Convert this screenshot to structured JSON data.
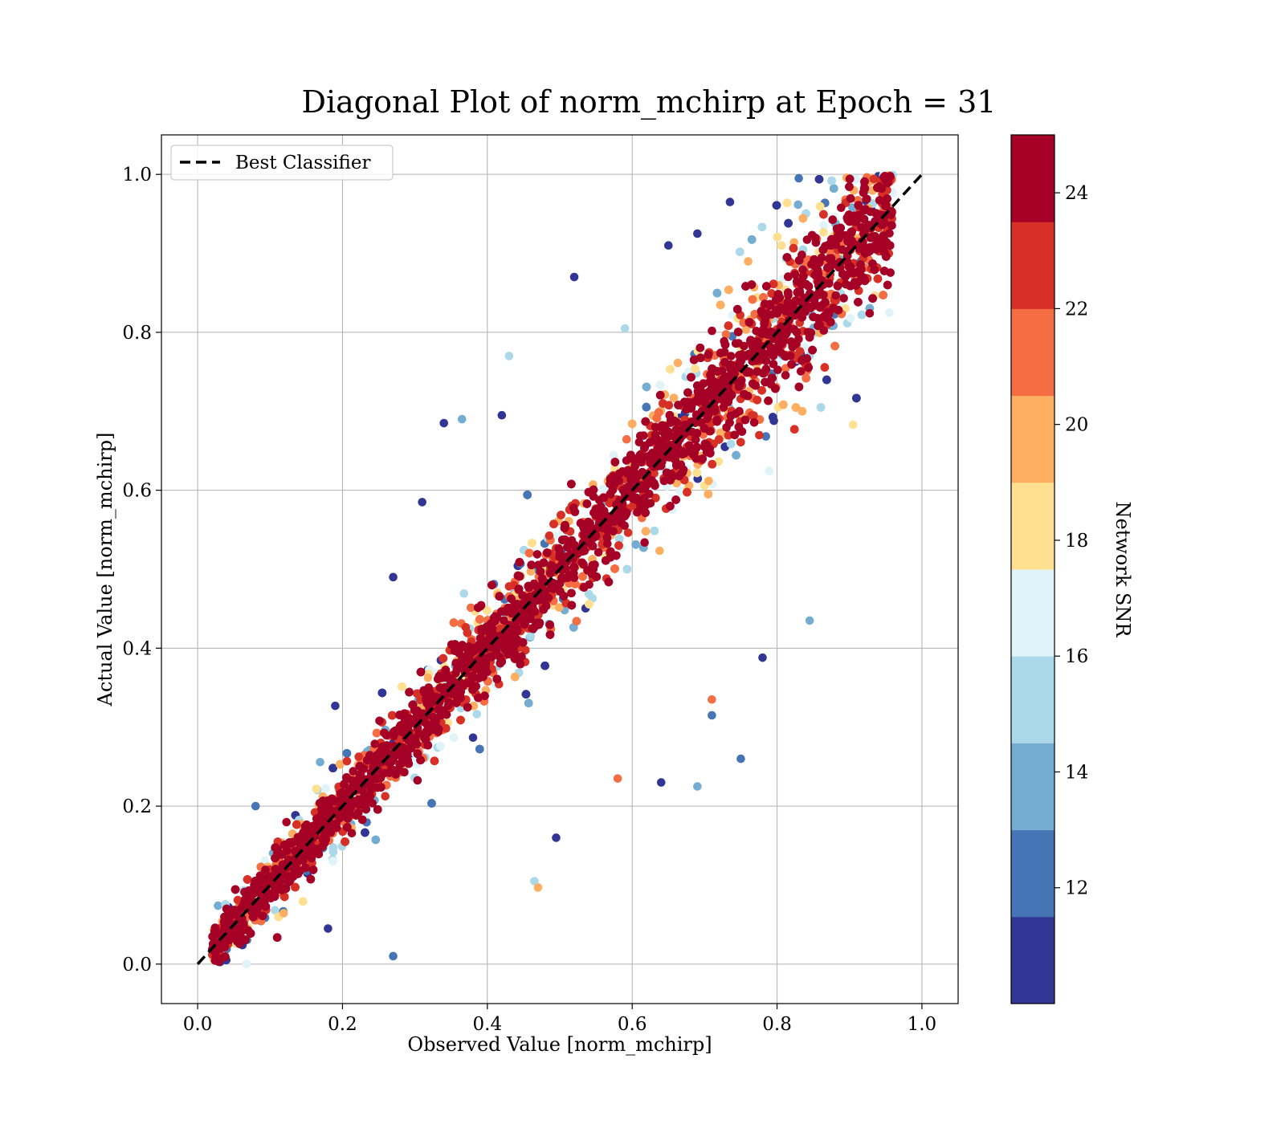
{
  "chart_data": {
    "type": "scatter",
    "title": "Diagonal Plot of norm_mchirp at Epoch = 31",
    "xlabel": "Observed Value [norm_mchirp]",
    "ylabel": "Actual Value [norm_mchirp]",
    "xlim": [
      -0.05,
      1.05
    ],
    "ylim": [
      -0.05,
      1.05
    ],
    "xticks": [
      0.0,
      0.2,
      0.4,
      0.6,
      0.8,
      1.0
    ],
    "yticks": [
      0.0,
      0.2,
      0.4,
      0.6,
      0.8,
      1.0
    ],
    "xtick_labels": [
      "0.0",
      "0.2",
      "0.4",
      "0.6",
      "0.8",
      "1.0"
    ],
    "ytick_labels": [
      "0.0",
      "0.2",
      "0.4",
      "0.6",
      "0.8",
      "1.0"
    ],
    "grid": true,
    "legend": {
      "position": "top-left",
      "entries": [
        "Best Classifier"
      ]
    },
    "reference_line": {
      "name": "Best Classifier",
      "style": "dashed",
      "color": "#000000",
      "x": [
        0.0,
        1.0
      ],
      "y": [
        0.0,
        1.0
      ]
    },
    "scatter_summary": {
      "description": "dense cloud of points clustered along the diagonal, observed range ~0.02-0.96, high-SNR points closest to the diagonal",
      "x_range": [
        0.02,
        0.96
      ],
      "y_range": [
        0.0,
        1.0
      ]
    },
    "outlier_points": [
      {
        "x": 0.52,
        "y": 0.87,
        "snr": 10.5
      },
      {
        "x": 0.43,
        "y": 0.77,
        "snr": 15.0
      },
      {
        "x": 0.34,
        "y": 0.685,
        "snr": 10.5
      },
      {
        "x": 0.365,
        "y": 0.69,
        "snr": 13.5
      },
      {
        "x": 0.42,
        "y": 0.695,
        "snr": 10.5
      },
      {
        "x": 0.31,
        "y": 0.585,
        "snr": 10.5
      },
      {
        "x": 0.27,
        "y": 0.01,
        "snr": 12.5
      },
      {
        "x": 0.495,
        "y": 0.16,
        "snr": 10.5
      },
      {
        "x": 0.465,
        "y": 0.105,
        "snr": 15.0
      },
      {
        "x": 0.47,
        "y": 0.097,
        "snr": 19.5
      },
      {
        "x": 0.58,
        "y": 0.235,
        "snr": 21.5
      },
      {
        "x": 0.64,
        "y": 0.23,
        "snr": 10.5
      },
      {
        "x": 0.69,
        "y": 0.225,
        "snr": 13.5
      },
      {
        "x": 0.75,
        "y": 0.26,
        "snr": 12.5
      },
      {
        "x": 0.845,
        "y": 0.435,
        "snr": 13.5
      },
      {
        "x": 0.78,
        "y": 0.388,
        "snr": 10.5
      },
      {
        "x": 0.18,
        "y": 0.045,
        "snr": 10.5
      },
      {
        "x": 0.71,
        "y": 0.335,
        "snr": 21.5
      },
      {
        "x": 0.71,
        "y": 0.315,
        "snr": 12.5
      },
      {
        "x": 0.905,
        "y": 0.683,
        "snr": 18.0
      },
      {
        "x": 0.955,
        "y": 0.825,
        "snr": 16.5
      },
      {
        "x": 0.69,
        "y": 0.925,
        "snr": 10.5
      },
      {
        "x": 0.735,
        "y": 0.965,
        "snr": 10.5
      },
      {
        "x": 0.83,
        "y": 0.995,
        "snr": 12.5
      },
      {
        "x": 0.65,
        "y": 0.91,
        "snr": 10.5
      },
      {
        "x": 0.08,
        "y": 0.2,
        "snr": 12.5
      },
      {
        "x": 0.19,
        "y": 0.327,
        "snr": 10.5
      },
      {
        "x": 0.27,
        "y": 0.49,
        "snr": 10.5
      },
      {
        "x": 0.59,
        "y": 0.805,
        "snr": 15.0
      }
    ],
    "colorbar": {
      "label": "Network SNR",
      "range": [
        10,
        25
      ],
      "ticks": [
        12,
        14,
        16,
        18,
        20,
        22,
        24
      ],
      "tick_labels": [
        "12",
        "14",
        "16",
        "18",
        "20",
        "22",
        "24"
      ],
      "colors": [
        "#313695",
        "#4575b4",
        "#74add1",
        "#abd9e9",
        "#e0f3f8",
        "#fee090",
        "#fdae61",
        "#f46d43",
        "#d73027",
        "#a50026"
      ],
      "bin_edges": [
        10,
        11.5,
        13,
        14.5,
        16,
        17.5,
        19,
        20.5,
        22,
        23.5,
        25
      ]
    }
  }
}
